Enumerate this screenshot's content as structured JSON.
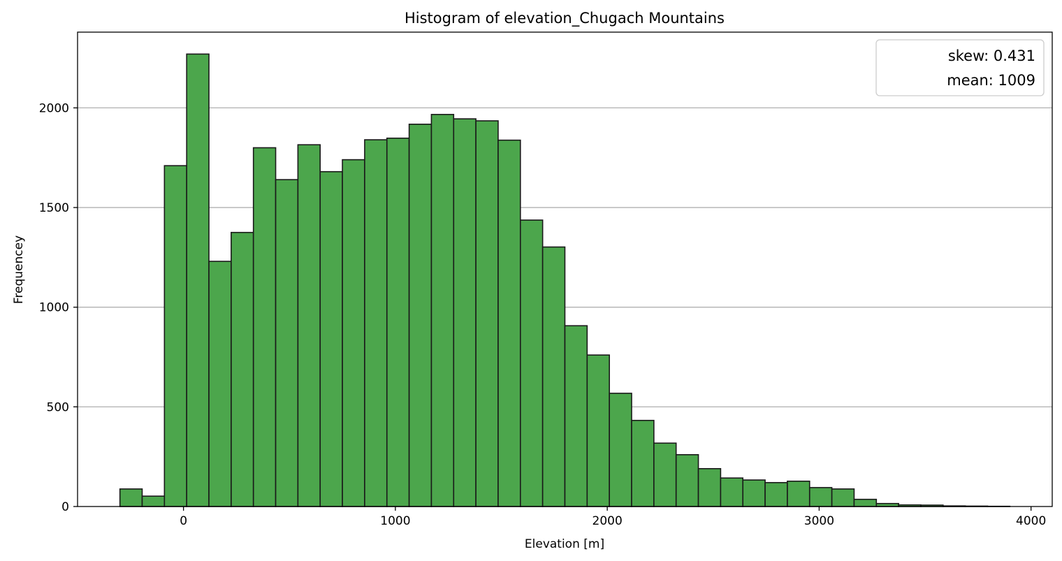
{
  "chart_data": {
    "type": "bar",
    "subtype": "histogram",
    "title": "Histogram of elevation_Chugach Mountains",
    "xlabel": "Elevation [m]",
    "ylabel": "Frequencey",
    "xlim": [
      -500,
      4100
    ],
    "ylim": [
      0,
      2380
    ],
    "grid": "y",
    "legend": {
      "placement": "top-right",
      "entries": [
        "skew: 0.431",
        "mean: 1009"
      ]
    },
    "bar_color": "#4ca64c",
    "bar_edge_color": "#1a1a1a",
    "x_ticks": [
      0,
      1000,
      2000,
      3000,
      4000
    ],
    "x_tick_labels": [
      "0",
      "1000",
      "2000",
      "3000",
      "4000"
    ],
    "y_ticks": [
      0,
      500,
      1000,
      1500,
      2000
    ],
    "y_tick_labels": [
      "0",
      "500",
      "1000",
      "1500",
      "2000"
    ],
    "bin_edges": [
      -300,
      -195,
      -90,
      15,
      120,
      225,
      330,
      435,
      540,
      645,
      750,
      855,
      960,
      1065,
      1170,
      1275,
      1380,
      1485,
      1590,
      1695,
      1800,
      1905,
      2010,
      2115,
      2220,
      2325,
      2430,
      2535,
      2640,
      2745,
      2850,
      2955,
      3060,
      3165,
      3270,
      3375,
      3480,
      3585,
      3690,
      3795,
      3900
    ],
    "values": [
      88,
      52,
      1710,
      2270,
      1230,
      1375,
      1800,
      1640,
      1815,
      1680,
      1740,
      1840,
      1848,
      1918,
      1967,
      1945,
      1935,
      1838,
      1437,
      1302,
      907,
      760,
      568,
      432,
      318,
      260,
      190,
      143,
      133,
      120,
      127,
      95,
      88,
      36,
      15,
      8,
      7,
      3,
      2,
      1
    ]
  }
}
